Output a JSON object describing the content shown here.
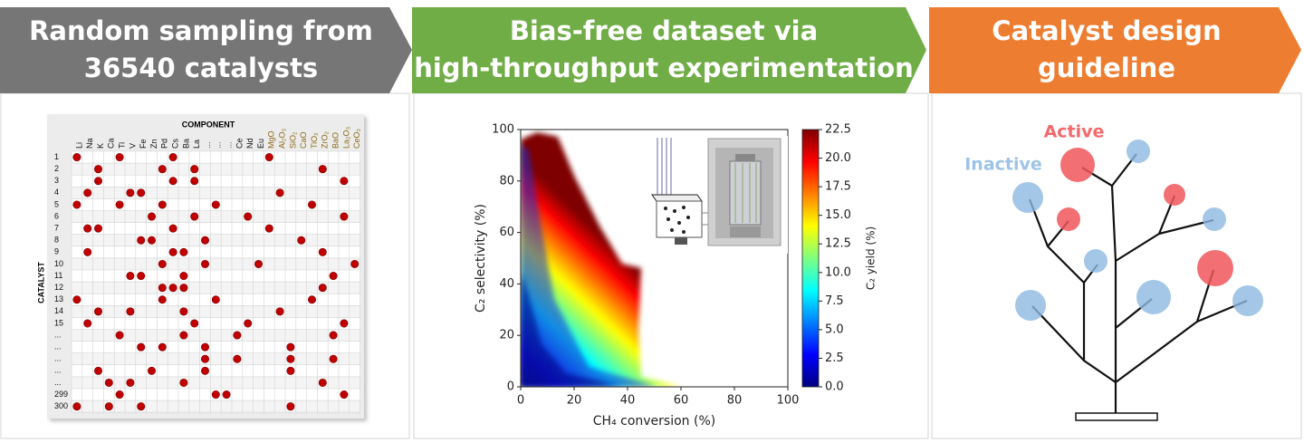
{
  "panels": [
    {
      "header": [
        "Random sampling from",
        "36540 catalysts"
      ]
    },
    {
      "header": [
        "Bias-free dataset via",
        "high-throughput experimentation"
      ]
    },
    {
      "header": [
        "Catalyst design",
        "guideline"
      ]
    }
  ],
  "matrix": {
    "title": "COMPONENT",
    "row_axis": "CATALYST",
    "columns": [
      "Li",
      "Na",
      "K",
      "Ca",
      "Ti",
      "V",
      "Fe",
      "Zn",
      "Pd",
      "Cs",
      "Ba",
      "La",
      "...",
      "...",
      "...",
      "Ce",
      "Nd",
      "Eu",
      "MgO",
      "Al₂O₃",
      "SiO₂",
      "CaO",
      "TiO₂",
      "ZrO₂",
      "BaO",
      "La₂O₃",
      "CeO₂"
    ],
    "rows": [
      {
        "label": "1",
        "dots": [
          0,
          4,
          9,
          18
        ]
      },
      {
        "label": "2",
        "dots": [
          2,
          8,
          11,
          23
        ]
      },
      {
        "label": "3",
        "dots": [
          2,
          9,
          11,
          25
        ]
      },
      {
        "label": "4",
        "dots": [
          1,
          5,
          6,
          19
        ]
      },
      {
        "label": "5",
        "dots": [
          0,
          4,
          8,
          13,
          22
        ]
      },
      {
        "label": "6",
        "dots": [
          7,
          11,
          16,
          25
        ]
      },
      {
        "label": "7",
        "dots": [
          1,
          2,
          9,
          18
        ]
      },
      {
        "label": "8",
        "dots": [
          6,
          7,
          12,
          21
        ]
      },
      {
        "label": "9",
        "dots": [
          1,
          9,
          10,
          23
        ]
      },
      {
        "label": "10",
        "dots": [
          8,
          12,
          17,
          26
        ]
      },
      {
        "label": "11",
        "dots": [
          5,
          6,
          10,
          24
        ]
      },
      {
        "label": "12",
        "dots": [
          8,
          9,
          10,
          23
        ]
      },
      {
        "label": "13",
        "dots": [
          0,
          8,
          13,
          22
        ]
      },
      {
        "label": "14",
        "dots": [
          2,
          5,
          10,
          19
        ]
      },
      {
        "label": "15",
        "dots": [
          1,
          11,
          16,
          25
        ]
      },
      {
        "label": "...",
        "dots": [
          4,
          10,
          15,
          24
        ]
      },
      {
        "label": "...",
        "dots": [
          6,
          8,
          12,
          20
        ]
      },
      {
        "label": "...",
        "dots": [
          12,
          15,
          20,
          24
        ]
      },
      {
        "label": "...",
        "dots": [
          2,
          7,
          12,
          20
        ]
      },
      {
        "label": "...",
        "dots": [
          3,
          5,
          10,
          23
        ]
      },
      {
        "label": "299",
        "dots": [
          4,
          13,
          14,
          25
        ]
      },
      {
        "label": "300",
        "dots": [
          0,
          3,
          6,
          20
        ]
      }
    ]
  },
  "plot": {
    "xlabel": "CH₄ conversion (%)",
    "ylabel": "C₂ selectivity (%)",
    "xlim": [
      0,
      100
    ],
    "xticks": [
      0,
      20,
      40,
      60,
      80,
      100
    ],
    "ylim": [
      0,
      100
    ],
    "yticks": [
      0,
      20,
      40,
      60,
      80,
      100
    ],
    "colorbar": {
      "label": "C₂ yield (%)",
      "lim": [
        0,
        22.5
      ],
      "ticks": [
        {
          "value": 0,
          "label": "0.0"
        },
        {
          "value": 2.5,
          "label": "2.5"
        },
        {
          "value": 5,
          "label": "5.0"
        },
        {
          "value": 7.5,
          "label": "7.5"
        },
        {
          "value": 10,
          "label": "10.0"
        },
        {
          "value": 12.5,
          "label": "12.5"
        },
        {
          "value": 15,
          "label": "15.0"
        },
        {
          "value": 17.5,
          "label": "17.5"
        },
        {
          "value": 20,
          "label": "20.0"
        },
        {
          "value": 22.5,
          "label": "22.5"
        }
      ],
      "colors": [
        "#00007f",
        "#0000ff",
        "#007fff",
        "#00ffff",
        "#7fff7f",
        "#ffff00",
        "#ff7f00",
        "#ff0000",
        "#7f0000"
      ]
    }
  },
  "tree": {
    "active": "Active",
    "inactive": "Inactive"
  }
}
